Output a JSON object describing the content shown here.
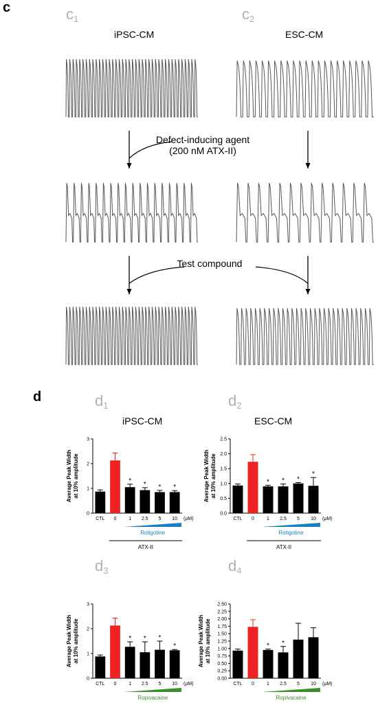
{
  "panel_c": {
    "letter": "c",
    "sub1": {
      "base": "c",
      "num": "1"
    },
    "sub2": {
      "base": "c",
      "num": "2"
    },
    "left_title": "iPSC-CM",
    "right_title": "ESC-CM",
    "step1_line1": "Defect-inducing agent",
    "step1_line2": "(200 nM ATX-II)",
    "step2": "Test compound"
  },
  "panel_d": {
    "letter": "d",
    "sub1": {
      "base": "d",
      "num": "1"
    },
    "sub2": {
      "base": "d",
      "num": "2"
    },
    "sub3": {
      "base": "d",
      "num": "3"
    },
    "sub4": {
      "base": "d",
      "num": "4"
    },
    "left_title": "iPSC-CM",
    "right_title": "ESC-CM"
  },
  "colors": {
    "red": "#ee2222",
    "black": "#000000",
    "blue": "#1a7fc0",
    "green": "#3a8f2a",
    "trace": "#555555"
  },
  "chart_data": [
    {
      "id": "d1",
      "type": "bar",
      "categories": [
        "CTL",
        "0",
        "1",
        "2.5",
        "5",
        "10"
      ],
      "values": [
        0.87,
        2.13,
        1.05,
        0.93,
        0.85,
        0.85
      ],
      "errors": [
        0.07,
        0.3,
        0.12,
        0.1,
        0.07,
        0.06
      ],
      "colors": [
        "#000000",
        "#ee2222",
        "#000000",
        "#000000",
        "#000000",
        "#000000"
      ],
      "significant": [
        false,
        false,
        true,
        true,
        true,
        true
      ],
      "ylim": [
        0,
        3
      ],
      "yticks": [
        "0",
        "1",
        "2",
        "3"
      ],
      "ylabel_line1": "Average Peak Width",
      "ylabel_line2": "at 10% amplitude",
      "unit": "(μM)",
      "compound": "Rotigotine",
      "compound_color": "#1a7fc0",
      "treatment": "ATX-II",
      "sig_mark": "*"
    },
    {
      "id": "d2",
      "type": "bar",
      "categories": [
        "CTL",
        "0",
        "1",
        "2.5",
        "5",
        "10"
      ],
      "values": [
        0.93,
        1.73,
        0.9,
        0.9,
        1.0,
        0.92
      ],
      "errors": [
        0.05,
        0.24,
        0.04,
        0.08,
        0.03,
        0.28
      ],
      "colors": [
        "#000000",
        "#ee2222",
        "#000000",
        "#000000",
        "#000000",
        "#000000"
      ],
      "significant": [
        false,
        false,
        true,
        true,
        true,
        true
      ],
      "ylim": [
        0,
        2.5
      ],
      "yticks": [
        "0.0",
        "0.5",
        "1.0",
        "1.5",
        "2.0",
        "2.5"
      ],
      "ylabel_line1": "Average Peak Width",
      "ylabel_line2": "at 10% amplitude",
      "unit": "(μM)",
      "compound": "Rotigotine",
      "compound_color": "#1a7fc0",
      "treatment": "ATX-II",
      "sig_mark": "*"
    },
    {
      "id": "d3",
      "type": "bar",
      "categories": [
        "CTL",
        "0",
        "1",
        "2.5",
        "5",
        "10"
      ],
      "values": [
        0.88,
        2.13,
        1.27,
        1.05,
        1.15,
        1.13
      ],
      "errors": [
        0.06,
        0.3,
        0.2,
        0.42,
        0.35,
        0.03
      ],
      "colors": [
        "#000000",
        "#ee2222",
        "#000000",
        "#000000",
        "#000000",
        "#000000"
      ],
      "significant": [
        false,
        false,
        true,
        true,
        true,
        true
      ],
      "ylim": [
        0,
        3
      ],
      "yticks": [
        "0",
        "1",
        "2",
        "3"
      ],
      "ylabel_line1": "Average Peak Width",
      "ylabel_line2": "at 10% amplitude",
      "unit": "(μM)",
      "compound": "Ropivacaine",
      "compound_color": "#3a8f2a",
      "treatment": "ATX-II",
      "sig_mark": "*"
    },
    {
      "id": "d4",
      "type": "bar",
      "categories": [
        "CTL",
        "0",
        "1",
        "2.5",
        "5",
        "10"
      ],
      "values": [
        0.93,
        1.73,
        0.95,
        0.87,
        1.3,
        1.38
      ],
      "errors": [
        0.05,
        0.24,
        0.03,
        0.2,
        0.55,
        0.32
      ],
      "colors": [
        "#000000",
        "#ee2222",
        "#000000",
        "#000000",
        "#000000",
        "#000000"
      ],
      "significant": [
        false,
        false,
        true,
        true,
        false,
        false
      ],
      "ylim": [
        0,
        2.5
      ],
      "yticks": [
        "0.00",
        "0.25",
        "0.50",
        "0.75",
        "1.00",
        "1.25",
        "1.50",
        "1.75",
        "2.00",
        "2.25",
        "2.50"
      ],
      "ylabel_line1": "Average Peak Width",
      "ylabel_line2": "at 10% amplitude",
      "unit": "(μM)",
      "compound": "Ropivacaine",
      "compound_color": "#3a8f2a",
      "treatment": "ATX-II",
      "sig_mark": "*"
    }
  ]
}
